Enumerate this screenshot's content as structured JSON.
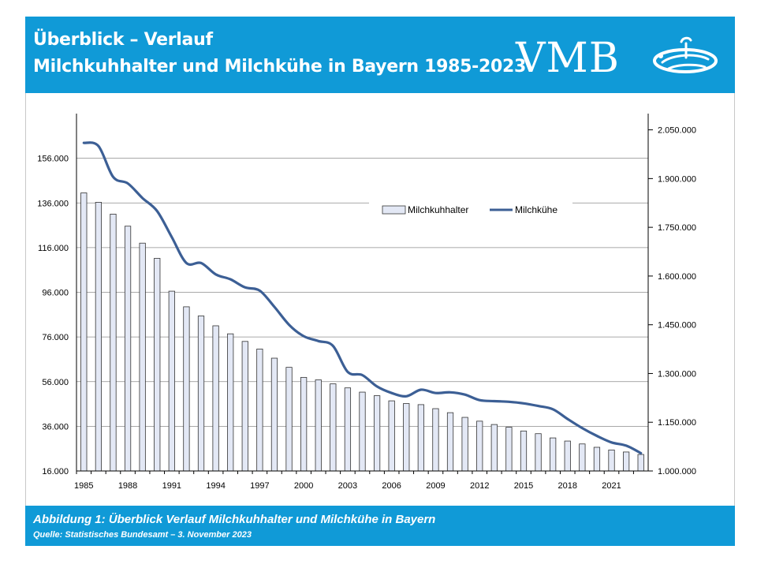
{
  "header": {
    "title_line1": "Überblick – Verlauf",
    "title_line2": "Milchkuhhalter und Milchkühe in Bayern 1985-2023",
    "logo_text": "VMB"
  },
  "footer": {
    "caption": "Abbildung 1: Überblick Verlauf Milchkuhhalter und Milchkühe in Bayern",
    "source": "Quelle: Statistisches Bundesamt – 3. November 2023"
  },
  "colors": {
    "header_bg": "#109ad7",
    "bar_fill": "#e3e8f5",
    "bar_stroke": "#333333",
    "line": "#3c5f95",
    "grid": "#8c8c8c"
  },
  "chart_data": {
    "type": "bar+line",
    "title": "",
    "xlabel": "",
    "ylabel": "",
    "categories": [
      "1985",
      "1986",
      "1987",
      "1988",
      "1989",
      "1990",
      "1991",
      "1992",
      "1993",
      "1994",
      "1995",
      "1996",
      "1997",
      "1998",
      "1999",
      "2000",
      "2001",
      "2002",
      "2003",
      "2004",
      "2005",
      "2006",
      "2007",
      "2008",
      "2009",
      "2010",
      "2011",
      "2012",
      "2013",
      "2014",
      "2015",
      "2016",
      "2017",
      "2018",
      "2019",
      "2020",
      "2021",
      "2022",
      "2023"
    ],
    "x_tick_labels": [
      "1985",
      "1988",
      "1991",
      "1994",
      "1997",
      "2000",
      "2003",
      "2006",
      "2009",
      "2012",
      "2015",
      "2018",
      "2021"
    ],
    "legend_position": "top-right",
    "grid": true,
    "y_left": {
      "ylim": [
        16000,
        176000
      ],
      "ticks": [
        16000,
        36000,
        56000,
        76000,
        96000,
        116000,
        136000,
        156000
      ],
      "tick_labels": [
        "16.000",
        "36.000",
        "56.000",
        "76.000",
        "96.000",
        "116.000",
        "136.000",
        "156.000"
      ]
    },
    "y_right": {
      "ylim": [
        1000000,
        2100000
      ],
      "ticks": [
        1000000,
        1150000,
        1300000,
        1450000,
        1600000,
        1750000,
        1900000,
        2050000
      ],
      "tick_labels": [
        "1.000.000",
        "1.150.000",
        "1.300.000",
        "1.450.000",
        "1.600.000",
        "1.750.000",
        "1.900.000",
        "2.050.000"
      ]
    },
    "series": [
      {
        "name": "Milchkuhhalter",
        "type": "bar",
        "axis": "left",
        "values": [
          140500,
          136300,
          131000,
          125600,
          118000,
          111200,
          96500,
          89500,
          85400,
          81000,
          77400,
          74000,
          70600,
          66500,
          62400,
          57900,
          56800,
          55000,
          53200,
          51300,
          49700,
          47400,
          46200,
          45700,
          43900,
          42100,
          40000,
          38300,
          36800,
          35600,
          33900,
          32700,
          30800,
          29400,
          28100,
          26600,
          25400,
          24500,
          23400
        ]
      },
      {
        "name": "Milchkühe",
        "type": "line",
        "axis": "right",
        "values": [
          2010000,
          2000000,
          1905000,
          1885000,
          1840000,
          1800000,
          1720000,
          1640000,
          1640000,
          1605000,
          1590000,
          1565000,
          1555000,
          1505000,
          1450000,
          1415000,
          1400000,
          1385000,
          1305000,
          1295000,
          1260000,
          1240000,
          1230000,
          1250000,
          1240000,
          1242000,
          1235000,
          1218000,
          1215000,
          1213000,
          1208000,
          1200000,
          1190000,
          1160000,
          1132000,
          1108000,
          1088000,
          1078000,
          1055000
        ]
      }
    ]
  }
}
